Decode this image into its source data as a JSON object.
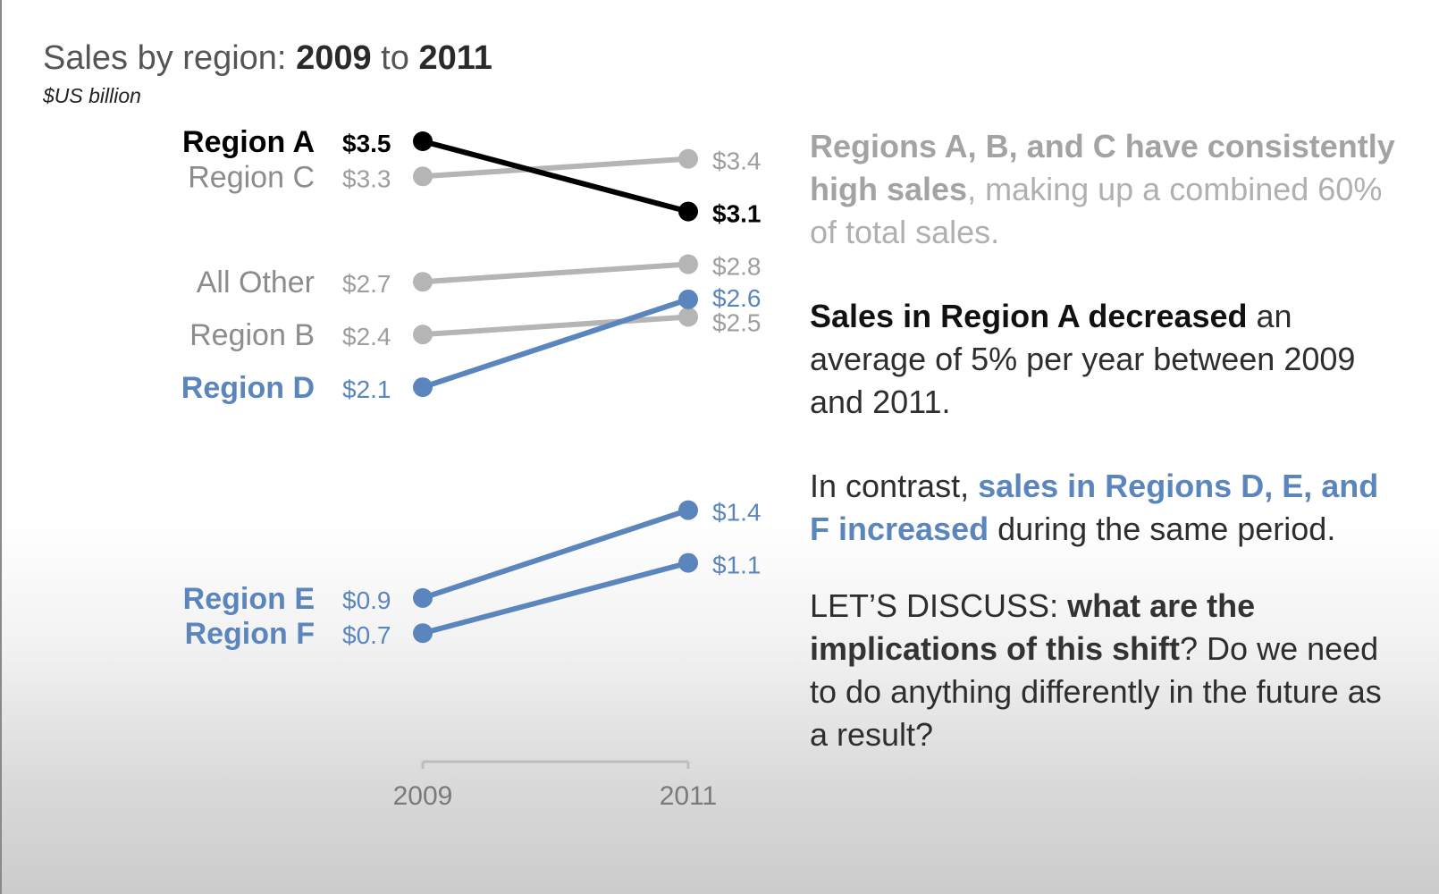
{
  "chart_data": {
    "type": "line",
    "title_prefix": "Sales by region:",
    "title_from": "2009",
    "title_to_word": "to",
    "title_to": "2011",
    "subtitle": "$US billion",
    "x": [
      "2009",
      "2011"
    ],
    "series": [
      {
        "name": "Region A",
        "values": [
          3.5,
          3.1
        ],
        "labels": [
          "$3.5",
          "$3.1"
        ],
        "color": "#000000",
        "emphasis": "bold"
      },
      {
        "name": "Region C",
        "values": [
          3.3,
          3.4
        ],
        "labels": [
          "$3.3",
          "$3.4"
        ],
        "color": "#b5b5b5",
        "emphasis": "normal"
      },
      {
        "name": "All Other",
        "values": [
          2.7,
          2.8
        ],
        "labels": [
          "$2.7",
          "$2.8"
        ],
        "color": "#b5b5b5",
        "emphasis": "normal"
      },
      {
        "name": "Region B",
        "values": [
          2.4,
          2.5
        ],
        "labels": [
          "$2.4",
          "$2.5"
        ],
        "color": "#b5b5b5",
        "emphasis": "normal"
      },
      {
        "name": "Region D",
        "values": [
          2.1,
          2.6
        ],
        "labels": [
          "$2.1",
          "$2.6"
        ],
        "color": "#5b86bd",
        "emphasis": "bold"
      },
      {
        "name": "Region E",
        "values": [
          0.9,
          1.4
        ],
        "labels": [
          "$0.9",
          "$1.4"
        ],
        "color": "#5b86bd",
        "emphasis": "bold"
      },
      {
        "name": "Region F",
        "values": [
          0.7,
          1.1
        ],
        "labels": [
          "$0.7",
          "$1.1"
        ],
        "color": "#5b86bd",
        "emphasis": "bold"
      }
    ],
    "grid": false,
    "legend": "direct labels on left"
  },
  "text": {
    "p1_bold": "Regions A, B, and C have consistently high sales",
    "p1_rest": ", making up a combined 60% of total sales.",
    "p2_bold": "Sales in Region A decreased",
    "p2_rest": " an average of 5% per year between 2009 and 2011.",
    "p3_pre": "In contrast, ",
    "p3_bold": "sales in Regions D, E, and F increased",
    "p3_rest": " during the same period.",
    "p4_pre": "LET’S DISCUSS: ",
    "p4_bold": "what are the implications of this shift",
    "p4_rest": "? Do we need to do anything differently in the future as a result?"
  }
}
